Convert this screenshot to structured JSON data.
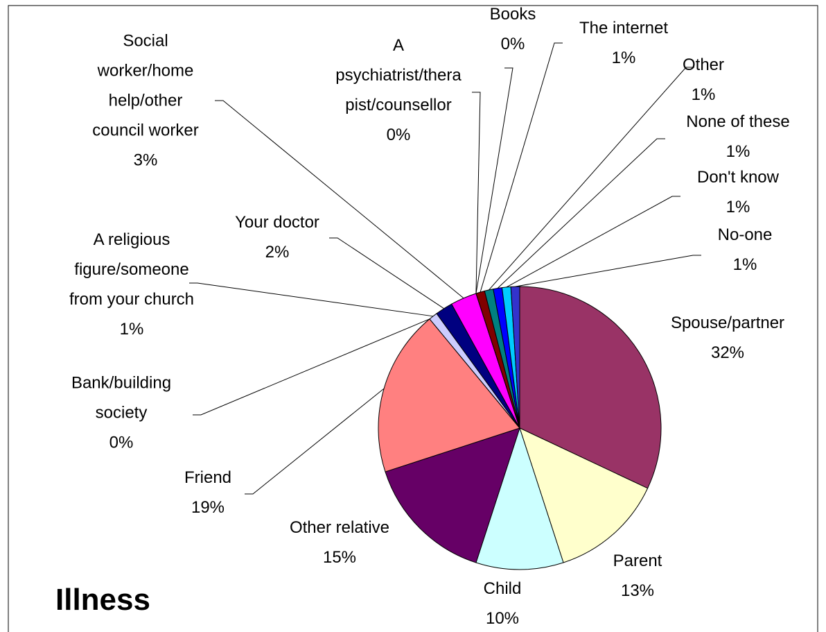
{
  "chart_data": {
    "type": "pie",
    "title": "Illness",
    "categories": [
      "Spouse/partner",
      "Parent",
      "Child",
      "Other relative",
      "Friend",
      "Bank/building society",
      "A religious figure/someone from your church",
      "Your doctor",
      "Social worker/home help/other council worker",
      "A psychiatrist/therapist/counsellor",
      "Books",
      "The internet",
      "Other",
      "None of these",
      "Don't know",
      "No-one"
    ],
    "values": [
      32,
      13,
      10,
      15,
      19,
      0,
      1,
      2,
      3,
      0,
      0,
      1,
      1,
      1,
      1,
      1
    ],
    "value_labels": [
      "32%",
      "13%",
      "10%",
      "15%",
      "19%",
      "0%",
      "1%",
      "2%",
      "3%",
      "0%",
      "0%",
      "1%",
      "1%",
      "1%",
      "1%",
      "1%"
    ],
    "colors": [
      "#993366",
      "#ffffcc",
      "#ccffff",
      "#660066",
      "#ff8080",
      "#0066cc",
      "#ccccff",
      "#000080",
      "#ff00ff",
      "#ffff00",
      "#00ffff",
      "#800000",
      "#008080",
      "#0000ff",
      "#00ccff",
      "#3333cc"
    ]
  }
}
